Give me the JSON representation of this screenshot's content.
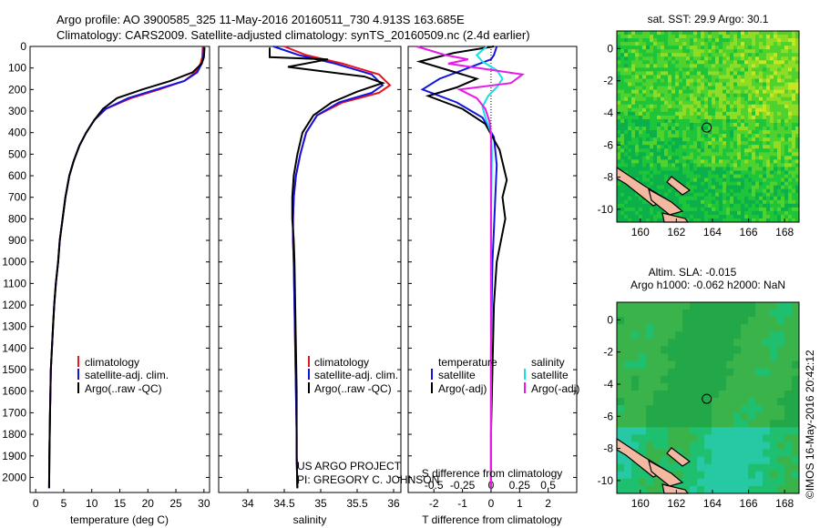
{
  "header": {
    "line1": "Argo profile: AO 3900585_325 11-May-2016 20160511_730 4.913S 163.685E",
    "line2": "Climatology: CARS2009. Satellite-adjusted climatology: synTS_20160509.nc (2.4d earlier)"
  },
  "credit": {
    "line1": "US ARGO PROJECT",
    "line2": "PI: GREGORY C. JOHNSON"
  },
  "footer": "©IMOS 16-May-2016 20:42:12",
  "colors": {
    "climatology": "#e8141e",
    "satellite": "#1414e0",
    "argo": "#000000",
    "satellite_sal": "#18e0e8",
    "argo_sal": "#e818e8"
  },
  "map_sst": {
    "title": "sat. SST: 29.9 Argo: 30.1",
    "yticks": [
      "0",
      "-2",
      "-4",
      "-6",
      "-8",
      "-10"
    ],
    "xticks": [
      "160",
      "162",
      "164",
      "166",
      "168"
    ],
    "colors": [
      "#0bb04a",
      "#1ec43a",
      "#4fd22e",
      "#8fdc26",
      "#c6e622",
      "#e4ee2a"
    ]
  },
  "map_sla": {
    "title1": "Altim. SLA: -0.015",
    "title2": "Argo h1000: -0.062 h2000: NaN",
    "yticks": [
      "0",
      "-2",
      "-4",
      "-6",
      "-8",
      "-10"
    ],
    "xticks": [
      "160",
      "162",
      "164",
      "166",
      "168"
    ],
    "colors": [
      "#22a848",
      "#3ab44a",
      "#1fbf70",
      "#26c9a4",
      "#5cd6c8"
    ]
  },
  "chart_data": [
    {
      "type": "line",
      "name": "temperature",
      "xlabel": "temperature (deg C)",
      "ylabel": "",
      "xlim": [
        -1,
        31
      ],
      "ylim": [
        2070,
        0
      ],
      "xticks": [
        0,
        5,
        10,
        15,
        20,
        25,
        30
      ],
      "yticks": [
        0,
        100,
        200,
        300,
        400,
        500,
        600,
        700,
        800,
        900,
        1000,
        1100,
        1200,
        1300,
        1400,
        1500,
        1600,
        1700,
        1800,
        1900,
        2000
      ],
      "legend": [
        "climatology",
        "satellite-adj. clim.",
        "Argo(..raw -QC)"
      ],
      "series": [
        {
          "name": "climatology",
          "color": "#e8141e",
          "x": [
            29.8,
            29.7,
            29.4,
            28.5,
            26.5,
            22,
            17,
            12.5,
            10.5,
            9,
            7.8,
            6.8,
            6,
            5.3,
            4.8,
            4.3,
            4,
            3.6,
            3.3,
            3.1,
            2.9,
            2.7,
            2.55,
            2.45,
            2.4
          ],
          "y": [
            0,
            50,
            80,
            120,
            160,
            200,
            240,
            290,
            340,
            400,
            460,
            530,
            600,
            700,
            800,
            900,
            1000,
            1100,
            1200,
            1300,
            1400,
            1500,
            1700,
            1900,
            2050
          ]
        },
        {
          "name": "satellite-adj. clim.",
          "color": "#1414e0",
          "x": [
            30,
            29.9,
            29.6,
            28.8,
            26.5,
            21.5,
            16.5,
            12.5,
            10.5,
            9,
            7.8,
            6.8,
            6,
            5.3,
            4.8,
            4.3,
            4,
            3.6,
            3.3,
            3.1,
            2.9,
            2.7,
            2.55,
            2.45,
            2.4
          ],
          "y": [
            0,
            50,
            80,
            120,
            160,
            200,
            240,
            290,
            340,
            400,
            460,
            530,
            600,
            700,
            800,
            900,
            1000,
            1100,
            1200,
            1300,
            1400,
            1500,
            1700,
            1900,
            2050
          ]
        },
        {
          "name": "Argo(..raw -QC)",
          "color": "#000000",
          "x": [
            30.1,
            30,
            29.6,
            28,
            24,
            19,
            14.5,
            12,
            10.5,
            9,
            7.8,
            6.8,
            6,
            5.3,
            4.8,
            4.3,
            4,
            3.6,
            3.3,
            3.1,
            2.9,
            2.7,
            2.55,
            2.45,
            2.4
          ],
          "y": [
            5,
            50,
            80,
            120,
            160,
            200,
            240,
            290,
            340,
            400,
            460,
            530,
            600,
            700,
            800,
            900,
            1000,
            1100,
            1200,
            1300,
            1400,
            1500,
            1700,
            1900,
            2050
          ]
        }
      ]
    },
    {
      "type": "line",
      "name": "salinity",
      "xlabel": "salinity",
      "ylabel": "",
      "xlim": [
        33.6,
        36.1
      ],
      "ylim": [
        2070,
        0
      ],
      "xticks": [
        34,
        34.5,
        35,
        35.5,
        36
      ],
      "legend": [
        "climatology",
        "satellite-adj. clim.",
        "Argo(..raw -QC)"
      ],
      "series": [
        {
          "name": "climatology",
          "color": "#e8141e",
          "x": [
            34.5,
            34.8,
            35.3,
            35.8,
            35.95,
            35.8,
            35.3,
            34.95,
            34.8,
            34.72,
            34.66,
            34.63,
            34.62,
            34.62,
            34.63,
            34.64,
            34.65,
            34.66,
            34.67,
            34.67,
            34.68
          ],
          "y": [
            0,
            40,
            80,
            130,
            180,
            215,
            260,
            320,
            400,
            500,
            600,
            700,
            800,
            900,
            1000,
            1200,
            1400,
            1600,
            1800,
            1900,
            2050
          ]
        },
        {
          "name": "satellite-adj. clim.",
          "color": "#1414e0",
          "x": [
            34.35,
            34.7,
            35.2,
            35.7,
            35.85,
            35.7,
            35.25,
            34.95,
            34.8,
            34.72,
            34.66,
            34.63,
            34.62,
            34.62,
            34.63,
            34.64,
            34.65,
            34.66,
            34.67,
            34.67,
            34.68
          ],
          "y": [
            0,
            40,
            80,
            130,
            180,
            215,
            260,
            320,
            400,
            500,
            600,
            700,
            800,
            900,
            1000,
            1200,
            1400,
            1600,
            1800,
            1900,
            2050
          ]
        },
        {
          "name": "Argo(..raw -QC)",
          "color": "#000000",
          "x": [
            34.3,
            34.3,
            35.1,
            34.55,
            35.6,
            35.85,
            35.5,
            35.15,
            34.9,
            34.75,
            34.68,
            34.63,
            34.61,
            34.61,
            34.63,
            34.64,
            34.65,
            34.66,
            34.67,
            34.67,
            34.68
          ],
          "y": [
            5,
            50,
            60,
            95,
            140,
            170,
            210,
            260,
            320,
            400,
            500,
            600,
            700,
            800,
            900,
            1000,
            1200,
            1400,
            1600,
            1900,
            2050
          ]
        }
      ]
    },
    {
      "type": "line",
      "name": "difference",
      "xlabel": "T difference from climatology",
      "xlabel_top": "S difference from climatology",
      "xlim": [
        -2.9,
        3.0
      ],
      "ylim": [
        2070,
        0
      ],
      "xticks": [
        -2,
        -1,
        0,
        1,
        2
      ],
      "sticks": [
        "-0.5",
        "-0.25",
        "0",
        "0.25",
        "0.5"
      ],
      "legend_titles": [
        "temperature",
        "salinity"
      ],
      "legend": [
        "satellite",
        "Argo(-adj)",
        "satellite",
        "Argo(-adj)"
      ],
      "series": [
        {
          "name": "satellite",
          "group": "temperature",
          "color": "#1414e0",
          "x": [
            0.2,
            0.1,
            0,
            -0.8,
            -1.8,
            -2.4,
            -1.2,
            -0.3,
            0.1,
            0.2,
            0.15,
            0.1,
            0.05,
            0.02,
            0,
            0,
            0,
            0,
            0
          ],
          "y": [
            0,
            40,
            60,
            100,
            150,
            200,
            260,
            330,
            420,
            550,
            700,
            850,
            1000,
            1200,
            1400,
            1600,
            1800,
            1900,
            2050
          ]
        },
        {
          "name": "Argo(-adj)",
          "group": "temperature",
          "color": "#000000",
          "x": [
            0.1,
            -1.3,
            -2.5,
            -1.5,
            -0.5,
            -1.2,
            -2.2,
            -1,
            -0.2,
            0.3,
            0.55,
            0.4,
            0.5,
            0.35,
            0.2,
            0.1,
            0.05,
            0,
            0
          ],
          "y": [
            0,
            30,
            70,
            110,
            150,
            190,
            230,
            290,
            360,
            480,
            620,
            700,
            800,
            900,
            1000,
            1200,
            1500,
            1800,
            2050
          ]
        },
        {
          "name": "satellite",
          "group": "salinity",
          "color": "#18e0e8",
          "x": [
            -0.15,
            -0.5,
            -0.3,
            0.2,
            0.4,
            0.2,
            -0.1,
            -0.3,
            -0.2,
            0,
            0.03,
            0.02,
            0,
            0,
            0,
            0,
            0
          ],
          "y": [
            0,
            40,
            70,
            110,
            150,
            190,
            230,
            280,
            330,
            400,
            500,
            600,
            800,
            1000,
            1400,
            1800,
            2050
          ]
        },
        {
          "name": "Argo(-adj)",
          "group": "salinity",
          "color": "#e818e8",
          "x": [
            -2.6,
            -1.6,
            -0.8,
            -1.5,
            1.1,
            0.7,
            -1.1,
            -0.5,
            -0.2,
            -0.05,
            0,
            0,
            0,
            0,
            0
          ],
          "y": [
            0,
            40,
            60,
            80,
            130,
            170,
            200,
            240,
            290,
            350,
            420,
            500,
            700,
            1000,
            2050
          ]
        }
      ]
    }
  ]
}
